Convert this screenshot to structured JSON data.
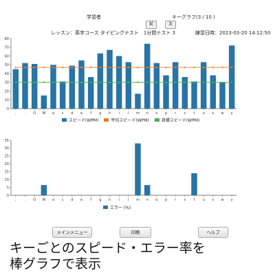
{
  "header": {
    "learner_label": "学習者",
    "graph_title": "キーグラフ(3 / 10 )",
    "prev_label": "前",
    "next_label": "次",
    "lesson": "レッスン：英字コース タイピングテスト　1分間テスト 3",
    "datetime": "練習日時：2023-03-20 14:12:50"
  },
  "buttons": {
    "menu": "メインメニュー",
    "print": "印刷",
    "help": "ヘルプ"
  },
  "caption": {
    "line1": "キーごとのスピード・エラー率を",
    "line2": "棒グラフで表示"
  },
  "colors": {
    "speed": "#2874a6",
    "average": "#e67e22",
    "target": "#4caf50",
    "error": "#2874a6"
  },
  "chart_data": [
    {
      "type": "bar",
      "categories": [
        ",",
        ".",
        "O",
        "W",
        "a",
        "c",
        "d",
        "e",
        "f",
        "g",
        "h",
        "i",
        "l",
        "m",
        "n",
        "o",
        "p",
        "r",
        "s",
        "t",
        "u",
        "v",
        "w",
        "y"
      ],
      "series": [
        {
          "name": "スピード(WPM)",
          "type": "bar",
          "values": [
            45,
            52,
            51,
            15,
            50,
            31,
            49,
            55,
            36,
            63,
            67,
            60,
            53,
            17,
            74,
            52,
            38,
            53,
            36,
            31,
            53,
            38,
            30,
            72
          ]
        },
        {
          "name": "平均スピード(WPM)",
          "type": "line",
          "values": [
            47,
            47,
            47,
            47,
            47,
            47,
            47,
            47,
            47,
            47,
            47,
            47,
            47,
            47,
            47,
            47,
            47,
            47,
            47,
            47,
            47,
            47,
            47,
            47
          ]
        },
        {
          "name": "目標スピード(WPM)",
          "type": "line",
          "values": [
            30,
            30,
            30,
            30,
            30,
            30,
            30,
            30,
            30,
            30,
            30,
            30,
            30,
            30,
            30,
            30,
            30,
            30,
            30,
            30,
            30,
            30,
            30,
            30
          ]
        }
      ],
      "yticks": [
        0,
        10,
        20,
        30,
        40,
        50,
        60,
        70,
        80
      ],
      "ylim": [
        0,
        80
      ],
      "legend": "bottom"
    },
    {
      "type": "bar",
      "categories": [
        ",",
        ".",
        "O",
        "W",
        "a",
        "c",
        "d",
        "e",
        "f",
        "g",
        "h",
        "i",
        "l",
        "m",
        "n",
        "o",
        "p",
        "r",
        "s",
        "t",
        "u",
        "v",
        "w",
        "y"
      ],
      "series": [
        {
          "name": "エラー (%)",
          "values": [
            0,
            0,
            0,
            6.5,
            0,
            0,
            0,
            0,
            0,
            0,
            0,
            0,
            0,
            33,
            6.5,
            0,
            0,
            0,
            0,
            14,
            0,
            0,
            0,
            0
          ]
        }
      ],
      "yticks": [
        0,
        5,
        10,
        15,
        20,
        25,
        30,
        35
      ],
      "ylim": [
        0,
        35
      ],
      "legend": "bottom"
    }
  ]
}
